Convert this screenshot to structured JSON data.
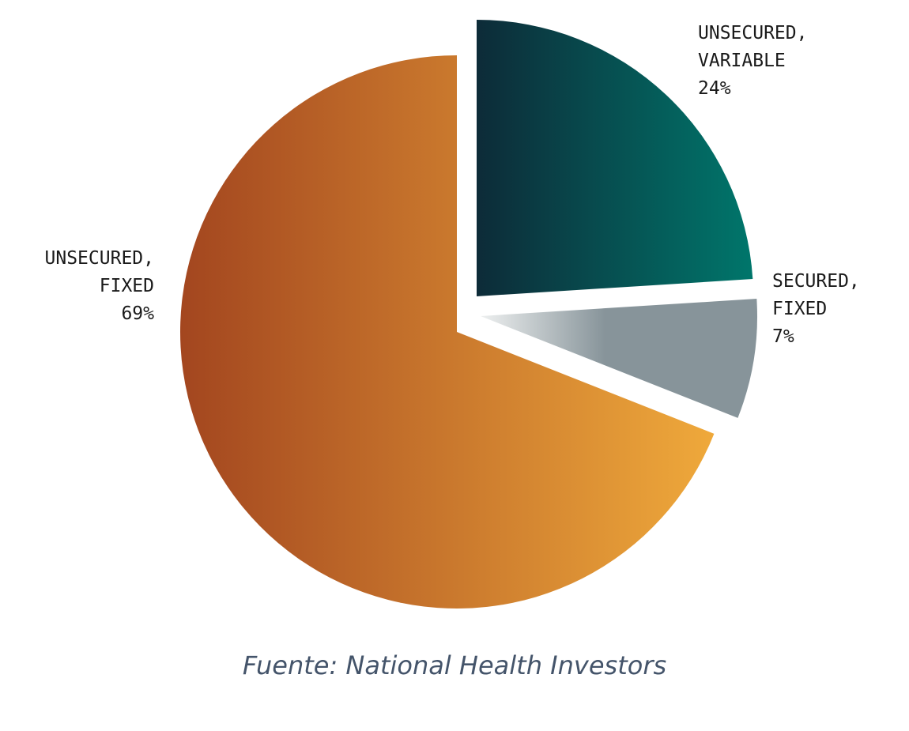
{
  "chart_data": {
    "type": "pie",
    "categories": [
      "UNSECURED,\nVARIABLE",
      "SECURED,\nFIXED",
      "UNSECURED,\nFIXED"
    ],
    "values": [
      24,
      7,
      69
    ],
    "value_labels": [
      "24%",
      "7%",
      "69%"
    ],
    "colors": [
      [
        "#0d2b38",
        "#00766b"
      ],
      [
        "#eef0f0",
        "#87949a"
      ],
      [
        "#a3461f",
        "#efa93b"
      ]
    ],
    "source": "Fuente: National Health Investors"
  }
}
